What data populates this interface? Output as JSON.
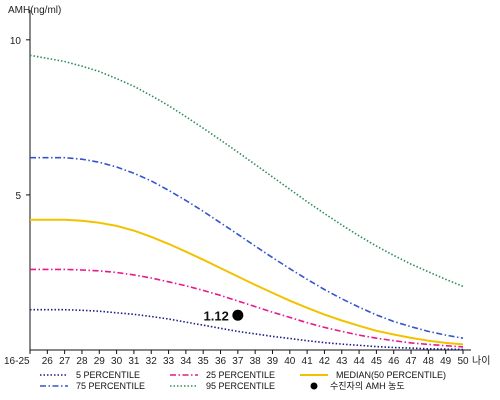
{
  "chart_data": {
    "type": "line",
    "ylabel": "AMH(ng/ml)",
    "xlabel": "나이",
    "categories": [
      "16-25",
      "26",
      "27",
      "28",
      "29",
      "30",
      "31",
      "32",
      "33",
      "34",
      "35",
      "36",
      "37",
      "38",
      "39",
      "40",
      "41",
      "42",
      "43",
      "44",
      "45",
      "46",
      "47",
      "48",
      "49",
      "50"
    ],
    "ylim": [
      0,
      10.8
    ],
    "yticks": [
      "5",
      "10"
    ],
    "grid": false,
    "legend_position": "bottom",
    "series": [
      {
        "name": "5 PERCENTILE",
        "style": "dotted",
        "color": "#1a1a8c",
        "values": [
          1.3,
          1.3,
          1.3,
          1.28,
          1.25,
          1.2,
          1.15,
          1.08,
          1.0,
          0.9,
          0.8,
          0.7,
          0.6,
          0.52,
          0.44,
          0.37,
          0.3,
          0.24,
          0.19,
          0.15,
          0.11,
          0.08,
          0.06,
          0.04,
          0.03,
          0.02
        ]
      },
      {
        "name": "25 PERCENTILE",
        "style": "dash-dot",
        "color": "#e6198c",
        "values": [
          2.6,
          2.6,
          2.6,
          2.58,
          2.55,
          2.5,
          2.42,
          2.32,
          2.2,
          2.07,
          1.92,
          1.76,
          1.58,
          1.4,
          1.22,
          1.05,
          0.88,
          0.73,
          0.6,
          0.48,
          0.38,
          0.3,
          0.23,
          0.18,
          0.14,
          0.1
        ]
      },
      {
        "name": "MEDIAN(50 PERCENTILE)",
        "style": "solid",
        "color": "#f2c200",
        "values": [
          4.2,
          4.2,
          4.2,
          4.17,
          4.1,
          4.0,
          3.85,
          3.65,
          3.42,
          3.17,
          2.91,
          2.64,
          2.37,
          2.1,
          1.84,
          1.59,
          1.36,
          1.14,
          0.95,
          0.78,
          0.62,
          0.5,
          0.39,
          0.3,
          0.23,
          0.18
        ]
      },
      {
        "name": "75 PERCENTILE",
        "style": "dash-dot",
        "color": "#3355cc",
        "values": [
          6.2,
          6.2,
          6.2,
          6.15,
          6.05,
          5.9,
          5.7,
          5.45,
          5.15,
          4.82,
          4.47,
          4.1,
          3.73,
          3.35,
          2.98,
          2.62,
          2.28,
          1.95,
          1.65,
          1.38,
          1.13,
          0.92,
          0.75,
          0.6,
          0.48,
          0.38
        ]
      },
      {
        "name": "95 PERCENTILE",
        "style": "dotted",
        "color": "#2e8b57",
        "values": [
          9.5,
          9.4,
          9.3,
          9.15,
          8.98,
          8.75,
          8.5,
          8.2,
          7.88,
          7.52,
          7.15,
          6.77,
          6.38,
          5.98,
          5.58,
          5.18,
          4.78,
          4.4,
          4.03,
          3.68,
          3.35,
          3.05,
          2.77,
          2.52,
          2.28,
          2.05
        ]
      }
    ],
    "marker": {
      "legend": "수진자의 AMH 농도",
      "label": "1.12",
      "x": "37",
      "y": 1.12,
      "color": "#000000"
    }
  }
}
